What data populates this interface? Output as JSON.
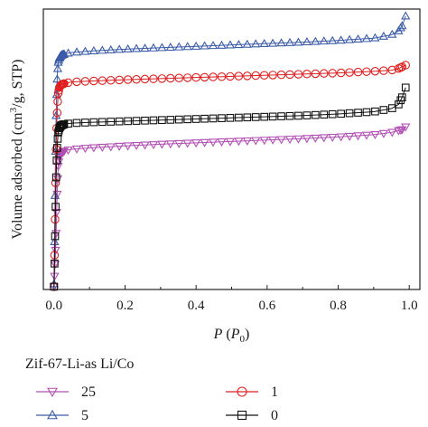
{
  "chart_data": {
    "type": "scatter",
    "xlabel_main": "P",
    "xlabel_paren": "P",
    "xlabel_sub": "0",
    "ylabel_base": "Volume adsorbed (cm",
    "ylabel_sup": "3",
    "ylabel_end": "/g, STP)",
    "xlim": [
      -0.03,
      1.03
    ],
    "ylim": [
      0,
      100
    ],
    "xticks": [
      0.0,
      0.2,
      0.4,
      0.6,
      0.8,
      1.0
    ],
    "xtick_labels": [
      "0.0",
      "0.2",
      "0.4",
      "0.6",
      "0.8",
      "1.0"
    ],
    "legend_title": "Zif-67-Li-as Li/Co",
    "series": [
      {
        "name": "25",
        "color": "#b24fb4",
        "marker": "triangle-down",
        "x": [
          0.0,
          0.002,
          0.004,
          0.006,
          0.008,
          0.01,
          0.012,
          0.015,
          0.02,
          0.03,
          0.05,
          0.1,
          0.2,
          0.3,
          0.4,
          0.5,
          0.6,
          0.7,
          0.8,
          0.9,
          0.95,
          0.98,
          0.99
        ],
        "y": [
          1,
          6,
          12,
          20,
          30,
          38,
          44,
          47,
          48.5,
          49.5,
          50,
          50.5,
          51.2,
          51.8,
          52.3,
          52.8,
          53.3,
          53.8,
          54.4,
          55.2,
          56,
          57,
          58
        ]
      },
      {
        "name": "5",
        "color": "#3b5ba9",
        "marker": "triangle-up",
        "x": [
          0.0,
          0.002,
          0.004,
          0.006,
          0.008,
          0.01,
          0.012,
          0.015,
          0.02,
          0.03,
          0.05,
          0.1,
          0.2,
          0.3,
          0.4,
          0.5,
          0.6,
          0.7,
          0.8,
          0.9,
          0.95,
          0.97,
          0.98,
          0.99
        ],
        "y": [
          2,
          22,
          45,
          62,
          72,
          78,
          81,
          82.5,
          83.5,
          84,
          84.5,
          85,
          85.7,
          86.2,
          86.7,
          87.2,
          87.7,
          88.2,
          88.8,
          89.6,
          90.8,
          92.2,
          94,
          97.5
        ]
      },
      {
        "name": "1",
        "color": "#e02020",
        "marker": "circle",
        "x": [
          0.0,
          0.002,
          0.004,
          0.006,
          0.008,
          0.01,
          0.012,
          0.015,
          0.02,
          0.03,
          0.05,
          0.1,
          0.2,
          0.3,
          0.4,
          0.5,
          0.6,
          0.7,
          0.8,
          0.9,
          0.95,
          0.97,
          0.98,
          0.99
        ],
        "y": [
          1,
          16,
          34,
          50,
          60,
          66,
          70,
          72,
          73,
          73.5,
          74,
          74.3,
          74.8,
          75.2,
          75.6,
          76,
          76.4,
          76.8,
          77.2,
          77.8,
          78.2,
          78.8,
          79.4,
          80
        ]
      },
      {
        "name": "0",
        "color": "#111111",
        "marker": "square",
        "x": [
          0.0,
          0.002,
          0.004,
          0.006,
          0.008,
          0.01,
          0.012,
          0.015,
          0.02,
          0.03,
          0.05,
          0.1,
          0.2,
          0.3,
          0.4,
          0.5,
          0.6,
          0.7,
          0.8,
          0.9,
          0.95,
          0.97,
          0.98,
          0.99
        ],
        "y": [
          1,
          12,
          26,
          40,
          48,
          53,
          56,
          57.5,
          58.5,
          59,
          59.3,
          59.6,
          60,
          60.4,
          60.8,
          61.2,
          61.6,
          62,
          62.6,
          63.4,
          64.5,
          66,
          68.5,
          72
        ]
      }
    ]
  }
}
